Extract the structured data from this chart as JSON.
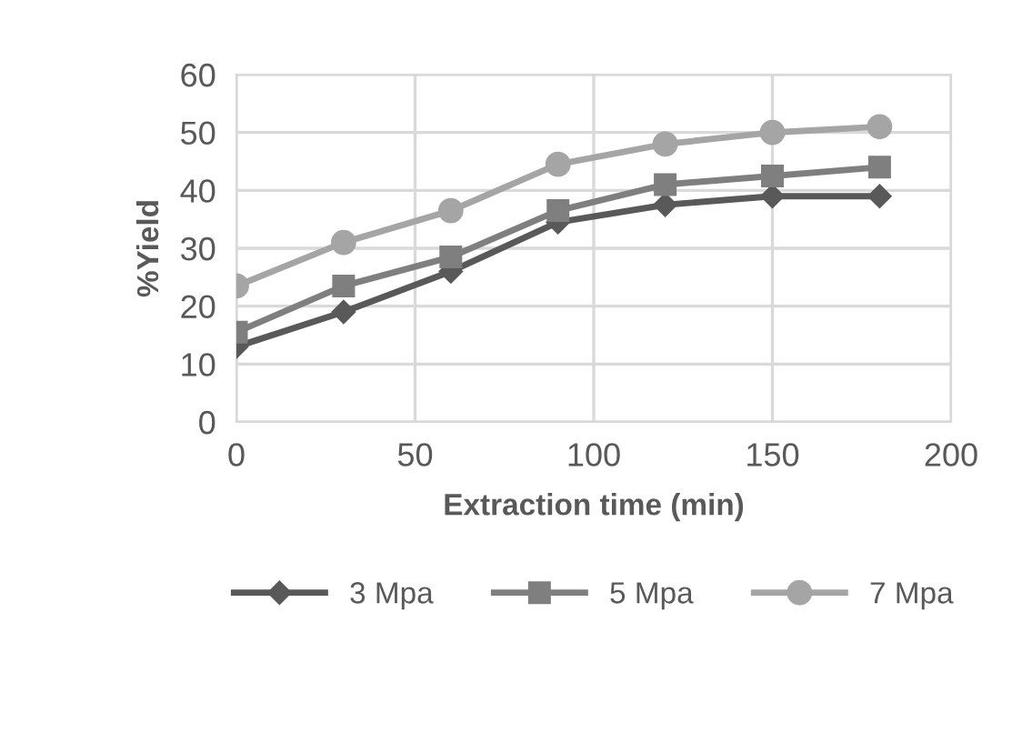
{
  "chart_data": {
    "type": "line",
    "xlabel": "Extraction time (min)",
    "ylabel": "%Yield",
    "x": [
      0,
      30,
      60,
      90,
      120,
      150,
      180
    ],
    "series": [
      {
        "name": "3 Mpa",
        "color": "#595959",
        "marker": "diamond",
        "values": [
          13,
          19,
          26,
          34.5,
          37.5,
          39,
          39
        ]
      },
      {
        "name": "5 Mpa",
        "color": "#7f7f7f",
        "marker": "square",
        "values": [
          15.5,
          23.5,
          28.5,
          36.5,
          41,
          42.5,
          44
        ]
      },
      {
        "name": "7 Mpa",
        "color": "#a5a5a5",
        "marker": "circle",
        "values": [
          23.5,
          31,
          36.5,
          44.5,
          48,
          50,
          51
        ]
      }
    ],
    "xlim": [
      0,
      200
    ],
    "xticks": [
      0,
      50,
      100,
      150,
      200
    ],
    "ylim": [
      0,
      60
    ],
    "yticks": [
      0,
      10,
      20,
      30,
      40,
      50,
      60
    ],
    "grid": true,
    "legend": "bottom",
    "line_style": "solid"
  }
}
